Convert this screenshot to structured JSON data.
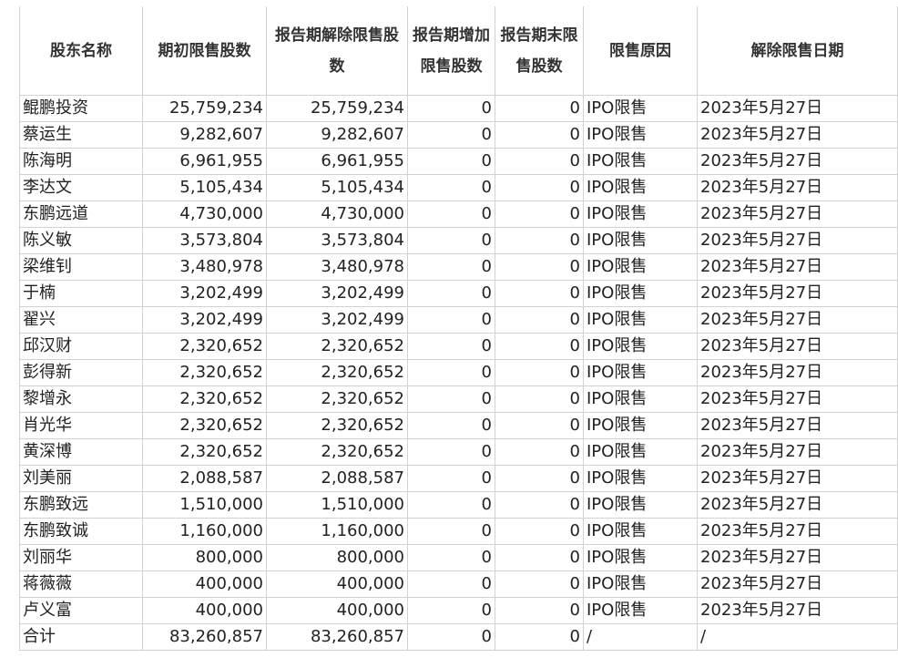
{
  "headers": [
    "股东名称",
    "期初限售股数",
    "报告期解除限售股数",
    "报告期增加限售股数",
    "报告期末限售股数",
    "限售原因",
    "解除限售日期"
  ],
  "rows": [
    [
      "鲲鹏投资",
      "25,759,234",
      "25,759,234",
      "0",
      "0",
      "IPO限售",
      "2023年5月27日"
    ],
    [
      "蔡运生",
      "9,282,607",
      "9,282,607",
      "0",
      "0",
      "IPO限售",
      "2023年5月27日"
    ],
    [
      "陈海明",
      "6,961,955",
      "6,961,955",
      "0",
      "0",
      "IPO限售",
      "2023年5月27日"
    ],
    [
      "李达文",
      "5,105,434",
      "5,105,434",
      "0",
      "0",
      "IPO限售",
      "2023年5月27日"
    ],
    [
      "东鹏远道",
      "4,730,000",
      "4,730,000",
      "0",
      "0",
      "IPO限售",
      "2023年5月27日"
    ],
    [
      "陈义敏",
      "3,573,804",
      "3,573,804",
      "0",
      "0",
      "IPO限售",
      "2023年5月27日"
    ],
    [
      "梁维钊",
      "3,480,978",
      "3,480,978",
      "0",
      "0",
      "IPO限售",
      "2023年5月27日"
    ],
    [
      "于楠",
      "3,202,499",
      "3,202,499",
      "0",
      "0",
      "IPO限售",
      "2023年5月27日"
    ],
    [
      "翟兴",
      "3,202,499",
      "3,202,499",
      "0",
      "0",
      "IPO限售",
      "2023年5月27日"
    ],
    [
      "邱汉财",
      "2,320,652",
      "2,320,652",
      "0",
      "0",
      "IPO限售",
      "2023年5月27日"
    ],
    [
      "彭得新",
      "2,320,652",
      "2,320,652",
      "0",
      "0",
      "IPO限售",
      "2023年5月27日"
    ],
    [
      "黎增永",
      "2,320,652",
      "2,320,652",
      "0",
      "0",
      "IPO限售",
      "2023年5月27日"
    ],
    [
      "肖光华",
      "2,320,652",
      "2,320,652",
      "0",
      "0",
      "IPO限售",
      "2023年5月27日"
    ],
    [
      "黄深博",
      "2,320,652",
      "2,320,652",
      "0",
      "0",
      "IPO限售",
      "2023年5月27日"
    ],
    [
      "刘美丽",
      "2,088,587",
      "2,088,587",
      "0",
      "0",
      "IPO限售",
      "2023年5月27日"
    ],
    [
      "东鹏致远",
      "1,510,000",
      "1,510,000",
      "0",
      "0",
      "IPO限售",
      "2023年5月27日"
    ],
    [
      "东鹏致诚",
      "1,160,000",
      "1,160,000",
      "0",
      "0",
      "IPO限售",
      "2023年5月27日"
    ],
    [
      "刘丽华",
      "800,000",
      "800,000",
      "0",
      "0",
      "IPO限售",
      "2023年5月27日"
    ],
    [
      "蒋薇薇",
      "400,000",
      "400,000",
      "0",
      "0",
      "IPO限售",
      "2023年5月27日"
    ],
    [
      "卢义富",
      "400,000",
      "400,000",
      "0",
      "0",
      "IPO限售",
      "2023年5月27日"
    ],
    [
      "合计",
      "83,260,857",
      "83,260,857",
      "0",
      "0",
      "/",
      "/"
    ]
  ]
}
